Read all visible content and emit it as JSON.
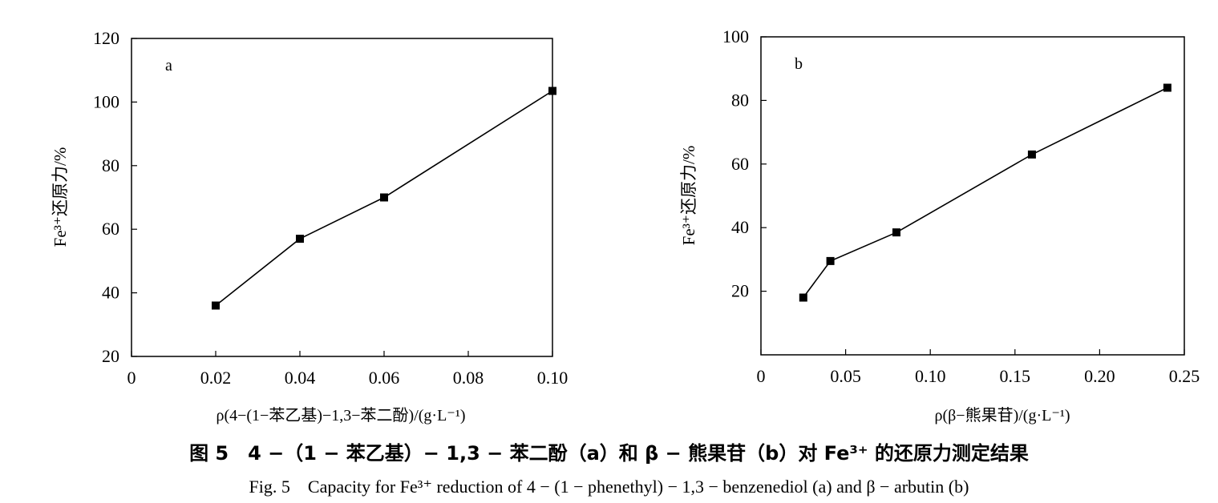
{
  "chart_data": [
    {
      "type": "line",
      "panel": "a",
      "x": [
        0.02,
        0.04,
        0.06,
        0.1
      ],
      "y": [
        36,
        57,
        70,
        103.5
      ],
      "xlim": [
        0,
        0.1
      ],
      "ylim": [
        20,
        120
      ],
      "xticks": [
        "0",
        "0.02",
        "0.04",
        "0.06",
        "0.08",
        "0.10"
      ],
      "yticks": [
        "20",
        "40",
        "60",
        "80",
        "100",
        "120"
      ],
      "xlabel": "ρ(4−(1−苯乙基)−1,3−苯二酚)/(g·L⁻¹)",
      "ylabel": "Fe³⁺还原力/%",
      "marker": "square",
      "grid": false
    },
    {
      "type": "line",
      "panel": "b",
      "x": [
        0.025,
        0.041,
        0.08,
        0.16,
        0.24
      ],
      "y": [
        18,
        29.5,
        38.5,
        63,
        84
      ],
      "xlim": [
        0,
        0.25
      ],
      "ylim": [
        0,
        100
      ],
      "xticks": [
        "0",
        "0.05",
        "0.10",
        "0.15",
        "0.20",
        "0.25"
      ],
      "yticks": [
        "20",
        "40",
        "60",
        "80",
        "100"
      ],
      "xlabel": "ρ(β−熊果苷)/(g·L⁻¹)",
      "ylabel": "Fe³⁺还原力/%",
      "marker": "square",
      "grid": false
    }
  ],
  "caption": {
    "cn": "图 5　4 −（1 − 苯乙基）− 1,3 − 苯二酚（a）和 β − 熊果苷（b）对 Fe³⁺ 的还原力测定结果",
    "en": "Fig. 5　Capacity for Fe³⁺ reduction of 4 − (1 − phenethyl) − 1,3 − benzenediol (a) and β − arbutin (b)"
  }
}
